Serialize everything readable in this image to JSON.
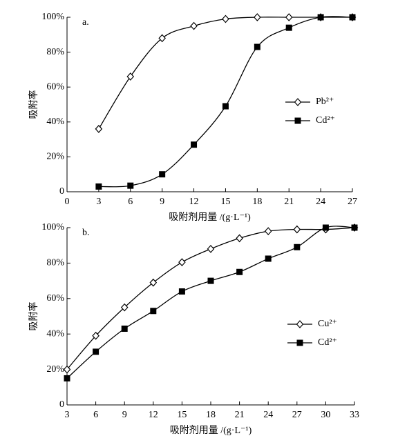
{
  "chart_data": [
    {
      "type": "line",
      "annotation": "a.",
      "x_label": "吸附剂用量 /(g·L⁻¹)",
      "y_label": "吸附率",
      "x": [
        3,
        6,
        9,
        12,
        15,
        18,
        21,
        24,
        27
      ],
      "series": [
        {
          "name": "Pb²⁺",
          "color": "#000000",
          "marker": "diamond-open",
          "values": [
            36,
            66,
            88,
            95,
            99,
            100,
            100,
            100,
            100
          ]
        },
        {
          "name": "Cd²⁺",
          "color": "#000000",
          "marker": "square-filled",
          "values": [
            3,
            3.5,
            10,
            27,
            49,
            83,
            94,
            100,
            100
          ]
        }
      ],
      "xlim": [
        0,
        27
      ],
      "xticks": [
        0,
        3,
        6,
        9,
        12,
        15,
        18,
        21,
        24,
        27
      ],
      "ylim": [
        0,
        100
      ],
      "yticks": [
        0,
        {
          "value": 20,
          "label": "20%"
        },
        {
          "value": 40,
          "label": "40%"
        },
        {
          "value": 60,
          "label": "60%"
        },
        {
          "value": 80,
          "label": "80%"
        },
        {
          "value": 100,
          "label": "100%"
        }
      ],
      "legend": "right"
    },
    {
      "type": "line",
      "annotation": "b.",
      "x_label": "吸附剂用量 /(g·L⁻¹)",
      "y_label": "吸附率",
      "x": [
        3,
        6,
        9,
        12,
        15,
        18,
        21,
        24,
        27,
        30,
        33
      ],
      "series": [
        {
          "name": "Cu²⁺",
          "color": "#000000",
          "marker": "diamond-open",
          "values": [
            20,
            39,
            55,
            69,
            80.5,
            88,
            94,
            98,
            99,
            99,
            100
          ]
        },
        {
          "name": "Cd²⁺",
          "color": "#000000",
          "marker": "square-filled",
          "values": [
            15,
            30,
            43,
            53,
            64,
            70,
            75,
            82.5,
            89,
            100,
            100
          ]
        }
      ],
      "xlim": [
        3,
        33
      ],
      "xticks": [
        3,
        6,
        9,
        12,
        15,
        18,
        21,
        24,
        27,
        30,
        33
      ],
      "ylim": [
        0,
        100
      ],
      "yticks": [
        0,
        {
          "value": 20,
          "label": "20%"
        },
        {
          "value": 40,
          "label": "40%"
        },
        {
          "value": 60,
          "label": "60%"
        },
        {
          "value": 80,
          "label": "80%"
        },
        {
          "value": 100,
          "label": "100%"
        }
      ],
      "legend": "right"
    }
  ]
}
